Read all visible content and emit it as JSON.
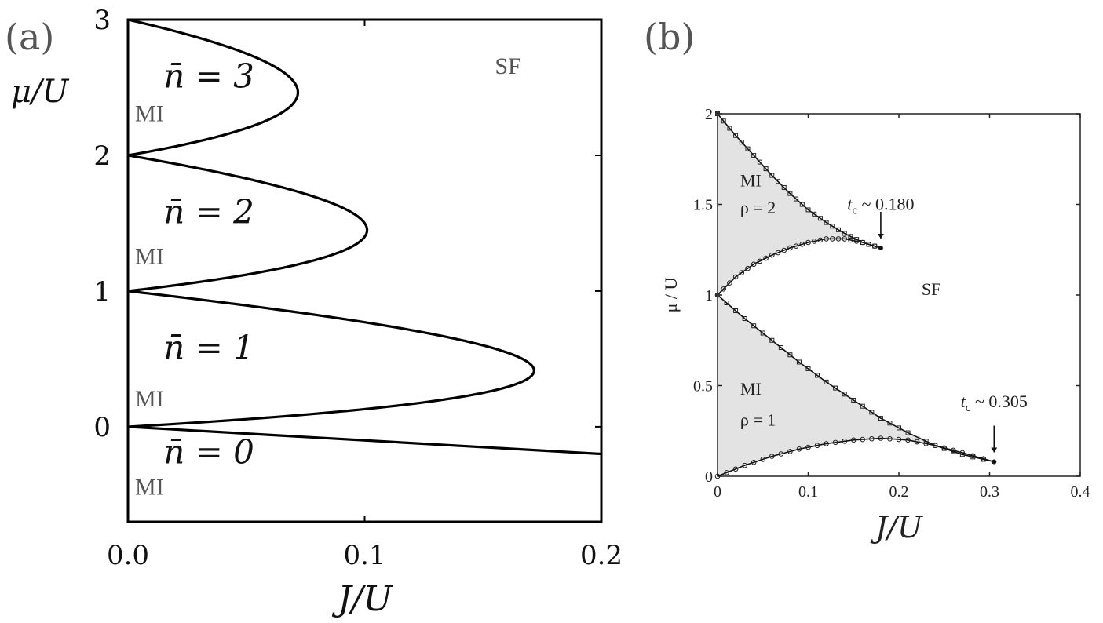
{
  "chart_data": [
    {
      "panel_label": "(a)",
      "type": "line",
      "xlabel": "J/U",
      "ylabel": "μ/U",
      "xlim": [
        0.0,
        0.2
      ],
      "ylim": [
        -0.7,
        3.0
      ],
      "xticks": [
        {
          "value": 0.0,
          "label": "0.0"
        },
        {
          "value": 0.1,
          "label": "0.1"
        },
        {
          "value": 0.2,
          "label": "0.2"
        }
      ],
      "yticks": [
        {
          "value": 0,
          "label": "0"
        },
        {
          "value": 1,
          "label": "1"
        },
        {
          "value": 2,
          "label": "2"
        },
        {
          "value": 3,
          "label": "3"
        }
      ],
      "lobes": [
        {
          "n": 1,
          "tip": {
            "x": 0.1716,
            "y": 0.414
          }
        },
        {
          "n": 2,
          "tip": {
            "x": 0.101,
            "y": 1.449
          }
        },
        {
          "n": 3,
          "tip": {
            "x": 0.0718,
            "y": 2.464
          }
        }
      ],
      "lower_boundary": [
        {
          "x": 0.0,
          "y": 0.0
        },
        {
          "x": 0.2,
          "y": -0.2
        }
      ],
      "annotations": [
        {
          "text": "n̄ = 3",
          "x": 0.015,
          "y": 2.5
        },
        {
          "text": "MI",
          "x": 0.003,
          "y": 2.25
        },
        {
          "text": "n̄ = 2",
          "x": 0.015,
          "y": 1.5
        },
        {
          "text": "MI",
          "x": 0.003,
          "y": 1.2
        },
        {
          "text": "n̄ = 1",
          "x": 0.015,
          "y": 0.5
        },
        {
          "text": "MI",
          "x": 0.003,
          "y": 0.15
        },
        {
          "text": "n̄ = 0",
          "x": 0.015,
          "y": -0.27
        },
        {
          "text": "MI",
          "x": 0.003,
          "y": -0.5
        },
        {
          "text": "SF",
          "x": 0.155,
          "y": 2.6
        }
      ]
    },
    {
      "panel_label": "(b)",
      "type": "scatter",
      "xlabel": "J/U",
      "ylabel": "μ / U",
      "xlim": [
        0.0,
        0.4
      ],
      "ylim": [
        0.0,
        2.0
      ],
      "xticks": [
        {
          "value": 0.0,
          "label": "0"
        },
        {
          "value": 0.1,
          "label": "0.1"
        },
        {
          "value": 0.2,
          "label": "0.2"
        },
        {
          "value": 0.3,
          "label": "0.3"
        },
        {
          "value": 0.4,
          "label": "0.4"
        }
      ],
      "yticks": [
        {
          "value": 0.0,
          "label": "0"
        },
        {
          "value": 0.5,
          "label": "0.5"
        },
        {
          "value": 1.0,
          "label": "1"
        },
        {
          "value": 1.5,
          "label": "1.5"
        },
        {
          "value": 2.0,
          "label": "2"
        }
      ],
      "series": [
        {
          "region": "MI ρ=2 upper",
          "x": [
            0.0,
            0.02,
            0.04,
            0.06,
            0.08,
            0.1,
            0.12,
            0.14,
            0.16,
            0.18
          ],
          "y": [
            2.0,
            1.88,
            1.77,
            1.66,
            1.56,
            1.47,
            1.4,
            1.34,
            1.29,
            1.26
          ]
        },
        {
          "region": "MI ρ=2 lower",
          "x": [
            0.0,
            0.02,
            0.04,
            0.06,
            0.08,
            0.1,
            0.12,
            0.14,
            0.16,
            0.18
          ],
          "y": [
            1.0,
            1.1,
            1.17,
            1.22,
            1.26,
            1.29,
            1.31,
            1.31,
            1.29,
            1.26
          ]
        },
        {
          "region": "MI ρ=1 upper",
          "x": [
            0.0,
            0.03,
            0.06,
            0.09,
            0.12,
            0.15,
            0.18,
            0.21,
            0.24,
            0.27,
            0.305
          ],
          "y": [
            1.0,
            0.87,
            0.75,
            0.63,
            0.52,
            0.42,
            0.32,
            0.24,
            0.17,
            0.12,
            0.08
          ]
        },
        {
          "region": "MI ρ=1 lower",
          "x": [
            0.0,
            0.03,
            0.06,
            0.09,
            0.12,
            0.15,
            0.18,
            0.21,
            0.24,
            0.27,
            0.305
          ],
          "y": [
            0.0,
            0.06,
            0.11,
            0.15,
            0.18,
            0.2,
            0.21,
            0.2,
            0.17,
            0.13,
            0.08
          ]
        }
      ],
      "annotations": [
        {
          "text": "MI",
          "x": 0.025,
          "y": 1.6
        },
        {
          "text": "ρ = 2",
          "x": 0.025,
          "y": 1.45
        },
        {
          "text": "MI",
          "x": 0.025,
          "y": 0.45
        },
        {
          "text": "ρ = 1",
          "x": 0.025,
          "y": 0.28
        },
        {
          "text": "SF",
          "x": 0.225,
          "y": 1.0
        },
        {
          "text": "t",
          "sub": "c",
          "rest": " ~ 0.180",
          "x": 0.18,
          "y": 1.47
        },
        {
          "text": "t",
          "sub": "c",
          "rest": " ~ 0.305",
          "x": 0.305,
          "y": 0.38
        }
      ],
      "critical_points": [
        {
          "x": 0.18,
          "y": 1.26
        },
        {
          "x": 0.305,
          "y": 0.08
        }
      ]
    }
  ]
}
